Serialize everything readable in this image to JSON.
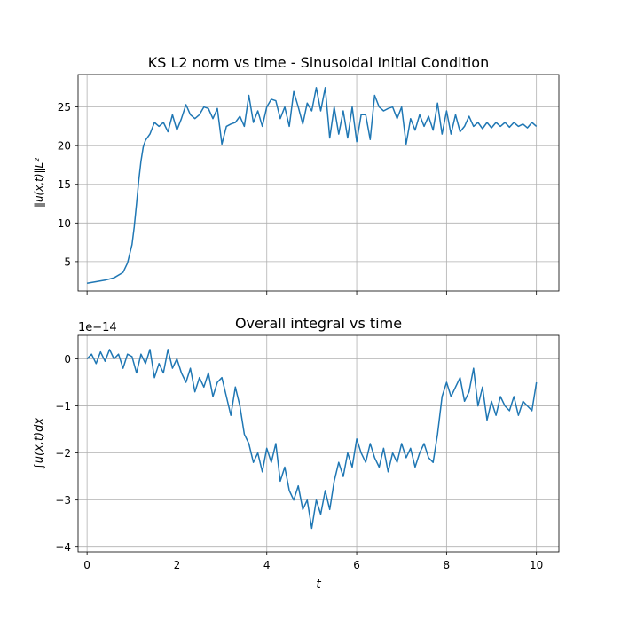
{
  "chart_data": [
    {
      "type": "line",
      "title": "KS L2 norm vs time - Sinusoidal Initial Condition",
      "xlabel": "",
      "ylabel": "‖u(x,t)‖L²",
      "xlim": [
        -0.2,
        10.5
      ],
      "ylim": [
        1.2,
        29.2
      ],
      "xticks": [
        0,
        2,
        4,
        6,
        8,
        10
      ],
      "yticks": [
        5,
        10,
        15,
        20,
        25
      ],
      "grid": true,
      "color": "#1f77b4",
      "series": [
        {
          "x": [
            0,
            0.2,
            0.4,
            0.6,
            0.8,
            0.9,
            1.0,
            1.05,
            1.1,
            1.15,
            1.2,
            1.25,
            1.3,
            1.4,
            1.5,
            1.6,
            1.7,
            1.8,
            1.9,
            2.0,
            2.1,
            2.2,
            2.3,
            2.4,
            2.5,
            2.6,
            2.7,
            2.8,
            2.9,
            3.0,
            3.1,
            3.2,
            3.3,
            3.4,
            3.5,
            3.6,
            3.7,
            3.8,
            3.9,
            4.0,
            4.1,
            4.2,
            4.3,
            4.4,
            4.5,
            4.6,
            4.7,
            4.8,
            4.9,
            5.0,
            5.1,
            5.2,
            5.3,
            5.4,
            5.5,
            5.6,
            5.7,
            5.8,
            5.9,
            6.0,
            6.1,
            6.2,
            6.3,
            6.4,
            6.5,
            6.6,
            6.7,
            6.8,
            6.9,
            7.0,
            7.1,
            7.2,
            7.3,
            7.4,
            7.5,
            7.6,
            7.7,
            7.8,
            7.9,
            8.0,
            8.1,
            8.2,
            8.3,
            8.4,
            8.5,
            8.6,
            8.7,
            8.8,
            8.9,
            9.0,
            9.1,
            9.2,
            9.3,
            9.4,
            9.5,
            9.6,
            9.7,
            9.8,
            9.9,
            10.0
          ],
          "y": [
            2.2,
            2.4,
            2.6,
            2.9,
            3.6,
            4.8,
            7.2,
            9.5,
            12.5,
            15.5,
            18.0,
            19.8,
            20.7,
            21.5,
            23.0,
            22.5,
            23.0,
            21.8,
            24.0,
            22.0,
            23.5,
            25.3,
            24.0,
            23.5,
            24.0,
            25.0,
            24.8,
            23.5,
            24.8,
            20.2,
            22.5,
            22.8,
            23.0,
            23.8,
            22.5,
            26.5,
            23.0,
            24.5,
            22.5,
            25.0,
            26.0,
            25.8,
            23.5,
            25.0,
            22.5,
            27.0,
            25.0,
            22.8,
            25.5,
            24.5,
            27.5,
            24.5,
            27.5,
            21.0,
            25.0,
            21.5,
            24.5,
            21.0,
            25.0,
            20.5,
            24.0,
            24.0,
            20.8,
            26.5,
            25.0,
            24.5,
            24.8,
            25.0,
            23.5,
            25.0,
            20.2,
            23.5,
            22.0,
            24.0,
            22.5,
            23.8,
            22.0,
            25.5,
            21.5,
            24.5,
            21.5,
            24.0,
            21.8,
            22.5,
            23.8,
            22.5,
            23.0,
            22.2,
            23.0,
            22.3,
            23.0,
            22.5,
            23.0,
            22.4,
            23.0,
            22.5,
            22.8,
            22.3,
            23.0,
            22.5
          ]
        }
      ]
    },
    {
      "type": "line",
      "title": "Overall integral vs time",
      "xlabel": "t",
      "ylabel": "∫u(x,t)dx",
      "offset_label": "1e−14",
      "xlim": [
        -0.2,
        10.5
      ],
      "ylim": [
        -4.1,
        0.5
      ],
      "xticks": [
        0,
        2,
        4,
        6,
        8,
        10
      ],
      "yticks": [
        0,
        -1,
        -2,
        -3,
        -4
      ],
      "grid": true,
      "color": "#1f77b4",
      "series": [
        {
          "x": [
            0,
            0.1,
            0.2,
            0.3,
            0.4,
            0.5,
            0.6,
            0.7,
            0.8,
            0.9,
            1.0,
            1.1,
            1.2,
            1.3,
            1.4,
            1.5,
            1.6,
            1.7,
            1.8,
            1.9,
            2.0,
            2.1,
            2.2,
            2.3,
            2.4,
            2.5,
            2.6,
            2.7,
            2.8,
            2.9,
            3.0,
            3.1,
            3.2,
            3.3,
            3.4,
            3.5,
            3.6,
            3.7,
            3.8,
            3.9,
            4.0,
            4.1,
            4.2,
            4.3,
            4.4,
            4.5,
            4.6,
            4.7,
            4.8,
            4.9,
            5.0,
            5.1,
            5.2,
            5.3,
            5.4,
            5.5,
            5.6,
            5.7,
            5.8,
            5.9,
            6.0,
            6.1,
            6.2,
            6.3,
            6.4,
            6.5,
            6.6,
            6.7,
            6.8,
            6.9,
            7.0,
            7.1,
            7.2,
            7.3,
            7.4,
            7.5,
            7.6,
            7.7,
            7.8,
            7.9,
            8.0,
            8.1,
            8.2,
            8.3,
            8.4,
            8.5,
            8.6,
            8.7,
            8.8,
            8.9,
            9.0,
            9.1,
            9.2,
            9.3,
            9.4,
            9.5,
            9.6,
            9.7,
            9.8,
            9.9,
            10.0
          ],
          "y": [
            0.0,
            0.1,
            -0.1,
            0.15,
            -0.05,
            0.2,
            0.0,
            0.1,
            -0.2,
            0.1,
            0.05,
            -0.3,
            0.1,
            -0.1,
            0.2,
            -0.4,
            -0.1,
            -0.3,
            0.2,
            -0.2,
            0.0,
            -0.3,
            -0.5,
            -0.2,
            -0.7,
            -0.4,
            -0.6,
            -0.3,
            -0.8,
            -0.5,
            -0.4,
            -0.8,
            -1.2,
            -0.6,
            -1.0,
            -1.6,
            -1.8,
            -2.2,
            -2.0,
            -2.4,
            -1.9,
            -2.2,
            -1.8,
            -2.6,
            -2.3,
            -2.8,
            -3.0,
            -2.7,
            -3.2,
            -3.0,
            -3.6,
            -3.0,
            -3.3,
            -2.8,
            -3.2,
            -2.6,
            -2.2,
            -2.5,
            -2.0,
            -2.3,
            -1.7,
            -2.0,
            -2.2,
            -1.8,
            -2.1,
            -2.3,
            -1.9,
            -2.4,
            -2.0,
            -2.2,
            -1.8,
            -2.1,
            -1.9,
            -2.3,
            -2.0,
            -1.8,
            -2.1,
            -2.2,
            -1.6,
            -0.8,
            -0.5,
            -0.8,
            -0.6,
            -0.4,
            -0.9,
            -0.7,
            -0.2,
            -1.0,
            -0.6,
            -1.3,
            -0.9,
            -1.2,
            -0.8,
            -1.0,
            -1.1,
            -0.8,
            -1.2,
            -0.9,
            -1.0,
            -1.1,
            -0.5
          ]
        }
      ]
    }
  ]
}
